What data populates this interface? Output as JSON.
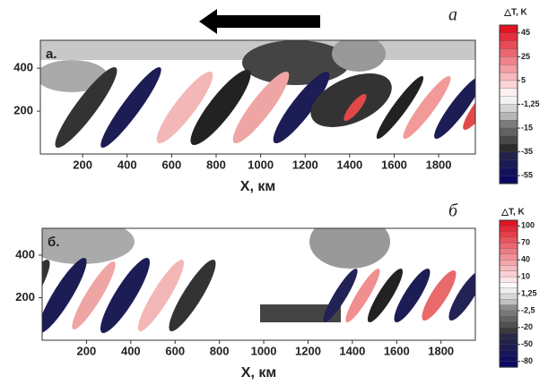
{
  "chart_data": [
    {
      "type": "contour",
      "figure_label": "а",
      "panel_label": "а.",
      "x_label": "X, км",
      "xlim": [
        10,
        1965
      ],
      "xticks": [
        200,
        400,
        600,
        800,
        1000,
        1200,
        1400,
        1600,
        1800
      ],
      "ylim": [
        0,
        530
      ],
      "yticks": [
        200,
        400
      ],
      "colorbar": {
        "title": "△T, K",
        "ticks": [
          45,
          25,
          5,
          {
            "value": -1.25,
            "label": "-1,25"
          },
          -15,
          -35,
          -55
        ]
      }
    },
    {
      "type": "contour",
      "figure_label": "б",
      "panel_label": "б.",
      "x_label": "X, км",
      "xlim": [
        0,
        1955
      ],
      "xticks": [
        200,
        400,
        600,
        800,
        1000,
        1200,
        1400,
        1600,
        1800
      ],
      "ylim": [
        0,
        526
      ],
      "yticks": [
        200,
        400
      ],
      "colorbar": {
        "title": "△T, K",
        "ticks": [
          100,
          70,
          40,
          10,
          {
            "value": 1.25,
            "label": "1,25"
          },
          {
            "value": -2.5,
            "label": "-2,5"
          },
          -20,
          -50,
          -80
        ]
      }
    }
  ]
}
